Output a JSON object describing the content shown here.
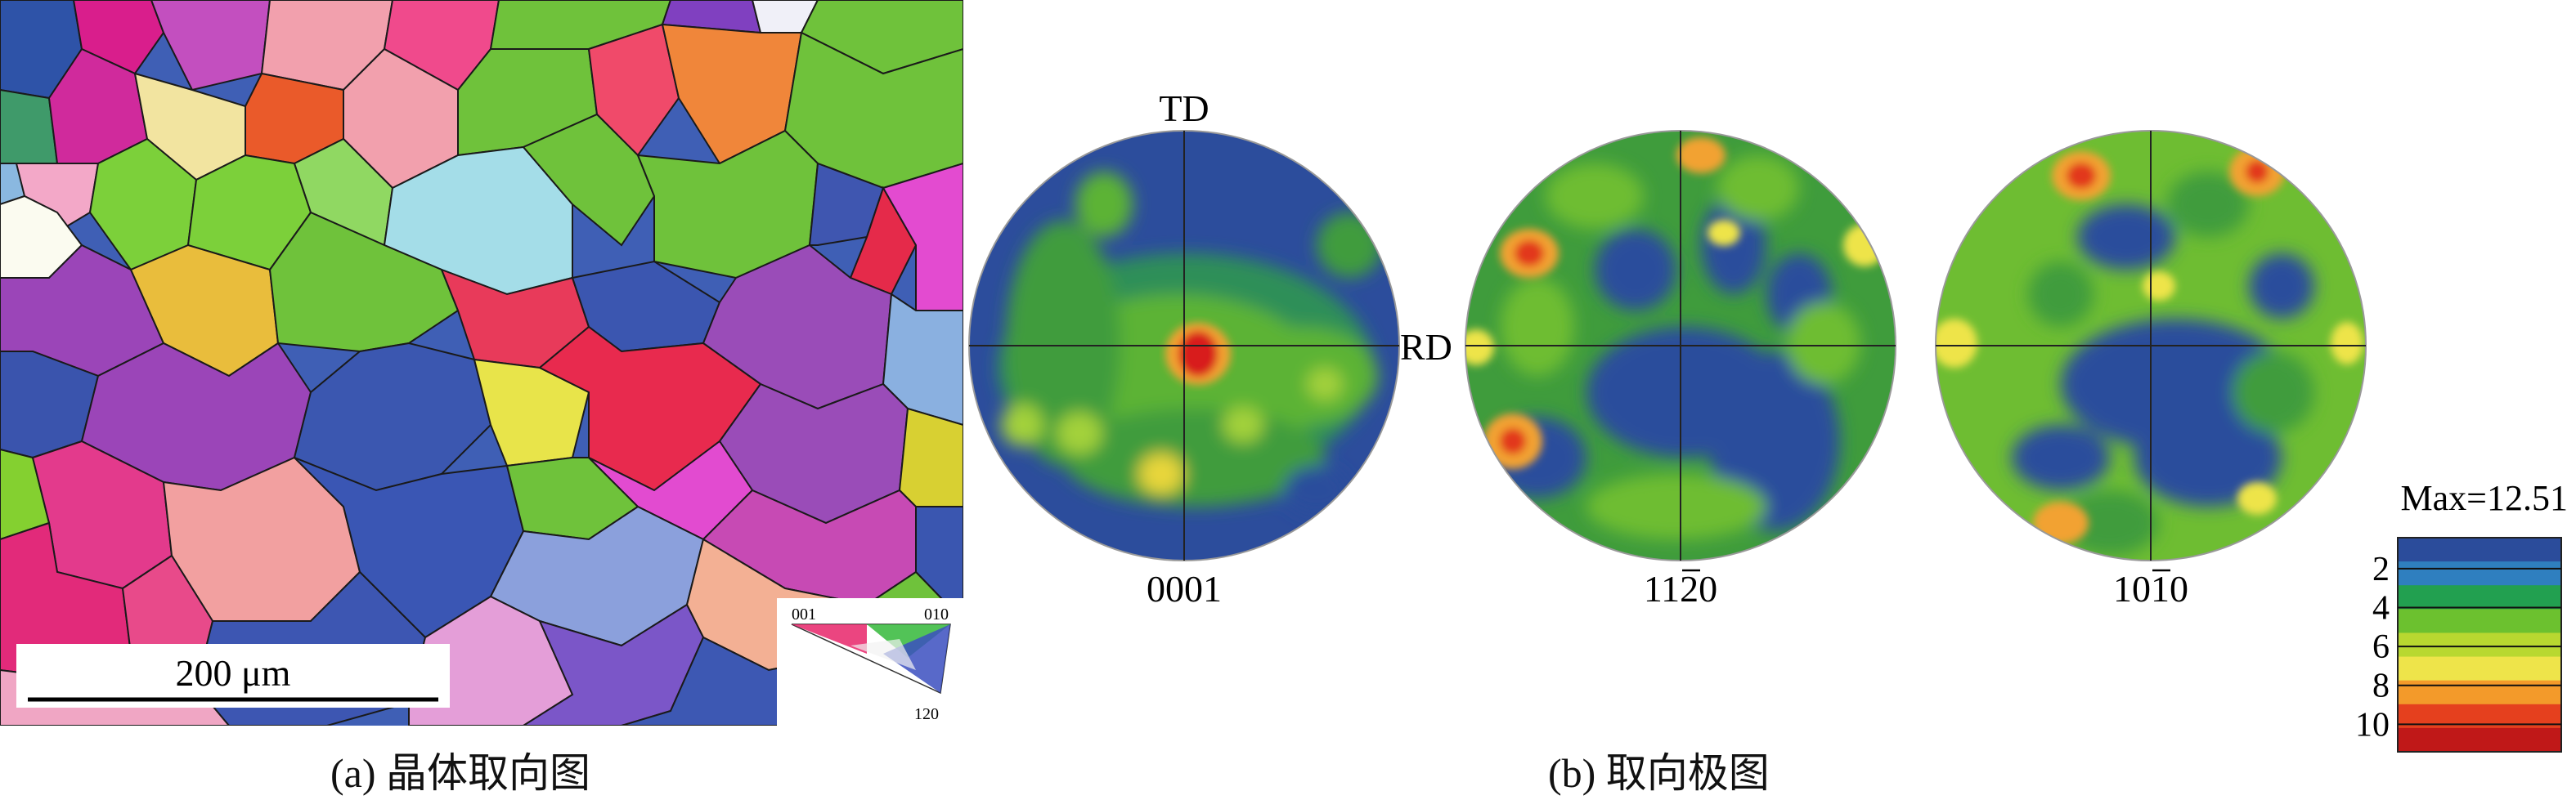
{
  "panel_a": {
    "caption": "(a) 晶体取向图",
    "scale_bar": {
      "label": "200 μm"
    },
    "ipf_key": {
      "corner_001": "001",
      "corner_010": "010",
      "corner_120": "120"
    }
  },
  "panel_b": {
    "caption": "(b) 取向极图",
    "axis_td": "TD",
    "axis_rd": "RD",
    "pole_figures": [
      {
        "label_main": "0001",
        "label_bar": ""
      },
      {
        "label_main": "1120",
        "label_bar": "2"
      },
      {
        "label_main": "1010",
        "label_bar": "1"
      }
    ],
    "legend": {
      "max_label": "Max=12.51",
      "ticks": [
        "2",
        "4",
        "6",
        "8",
        "10"
      ],
      "colors": [
        "#2b4c9b",
        "#2f7fbf",
        "#22a050",
        "#6cc12f",
        "#b8d830",
        "#eee44a",
        "#f39a2a",
        "#e5401e",
        "#c01818"
      ]
    }
  },
  "palette": {
    "blue": "#2f4ea2",
    "dark_blue": "#2b3f96",
    "teal": "#2e9a76",
    "green": "#3aa43c",
    "light_green": "#7dc43a",
    "yellow": "#e8df3a",
    "orange": "#f2a232",
    "red": "#e2381e"
  }
}
